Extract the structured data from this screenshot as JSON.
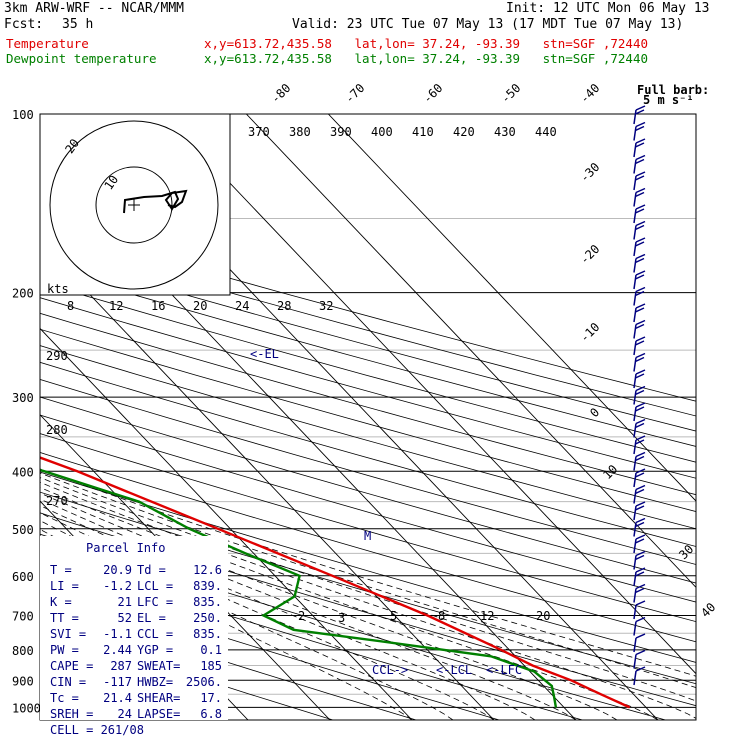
{
  "header": {
    "model": "3km ARW-WRF -- NCAR/MMM",
    "init": "Init: 12 UTC Mon 06 May 13",
    "fcst_label": "Fcst:",
    "fcst_value": "35 h",
    "valid": "Valid: 23 UTC Tue 07 May 13 (17 MDT Tue 07 May 13)"
  },
  "legend": [
    {
      "name": "Temperature",
      "info": "x,y=613.72,435.58   lat,lon= 37.24, -93.39   stn=SGF ,72440",
      "color": "#e00000"
    },
    {
      "name": "Dewpoint temperature",
      "info": "x,y=613.72,435.58   lat,lon= 37.24, -93.39   stn=SGF ,72440",
      "color": "#008000"
    }
  ],
  "full_barb_label": [
    "Full barb:",
    "5 m s⁻¹"
  ],
  "parcel_info": {
    "title": "Parcel Info",
    "rows": [
      [
        "T  =",
        "20.9",
        "Td =",
        "12.6"
      ],
      [
        "LI =",
        "-1.2",
        "LCL =",
        "839."
      ],
      [
        "K  =",
        "21",
        "LFC =",
        "835."
      ],
      [
        "TT =",
        "52",
        "EL =",
        "250."
      ],
      [
        "SVI =",
        "-1.1",
        "CCL =",
        "835."
      ],
      [
        "PW =",
        "2.44",
        "YGP =",
        "0.1"
      ],
      [
        "CAPE =",
        "287",
        "SWEAT=",
        "185"
      ],
      [
        "CIN =",
        "-117",
        "HWBZ=",
        "2506."
      ],
      [
        "Tc =",
        "21.4",
        "SHEAR=",
        "17."
      ],
      [
        "SREH =",
        "24",
        "LAPSE=",
        "6.8"
      ]
    ],
    "cell": "CELL = 261/08"
  },
  "hodograph": {
    "units_label": "kts",
    "ring_labels": [
      "10",
      "20"
    ]
  },
  "chart_data": {
    "type": "line",
    "title": "",
    "xlabel": "",
    "ylabel": "",
    "pressure_levels": [
      100,
      200,
      300,
      400,
      500,
      600,
      700,
      800,
      900,
      1000
    ],
    "skewed_temperature_labels": [
      -80,
      -70,
      -60,
      -50,
      -40,
      -30,
      -20,
      -10,
      0,
      10,
      20,
      30,
      40
    ],
    "theta_e_labels": [
      370,
      380,
      390,
      400,
      410,
      420,
      430,
      440
    ],
    "theta_labels": [
      290,
      280,
      270
    ],
    "mixing_ratio_upper_labels": [
      8,
      12,
      16,
      20,
      24,
      28,
      32
    ],
    "mixing_ratio_lower_labels": [
      2,
      3,
      5,
      8,
      12,
      20
    ],
    "annotations": [
      "<-EL",
      "M",
      "CCL->",
      "<-LCL",
      "<-LFC"
    ],
    "series": [
      {
        "name": "Temperature",
        "color": "#e00000",
        "points": [
          [
            1000,
            18
          ],
          [
            950,
            16
          ],
          [
            900,
            14
          ],
          [
            875,
            12.5
          ],
          [
            850,
            11
          ],
          [
            800,
            9
          ],
          [
            700,
            4
          ],
          [
            600,
            -3
          ],
          [
            500,
            -11.5
          ],
          [
            400,
            -22
          ],
          [
            300,
            -38
          ],
          [
            250,
            -49
          ],
          [
            200,
            -56.5
          ],
          [
            150,
            -60
          ],
          [
            100,
            -65
          ]
        ]
      },
      {
        "name": "Dewpoint temperature",
        "color": "#008000",
        "points": [
          [
            1000,
            9
          ],
          [
            960,
            10
          ],
          [
            920,
            11
          ],
          [
            870,
            10.5
          ],
          [
            820,
            7
          ],
          [
            780,
            -3
          ],
          [
            740,
            -14
          ],
          [
            700,
            -16
          ],
          [
            650,
            -10
          ],
          [
            600,
            -7
          ],
          [
            550,
            -11
          ],
          [
            500,
            -15
          ],
          [
            450,
            -18
          ],
          [
            400,
            -26
          ],
          [
            350,
            -36
          ],
          [
            300,
            -46
          ],
          [
            250,
            -58
          ],
          [
            200,
            -68
          ],
          [
            150,
            -78
          ],
          [
            120,
            -80
          ],
          [
            100,
            -80
          ]
        ]
      }
    ],
    "wind_barbs": {
      "count": 35,
      "color": "#000080"
    }
  }
}
